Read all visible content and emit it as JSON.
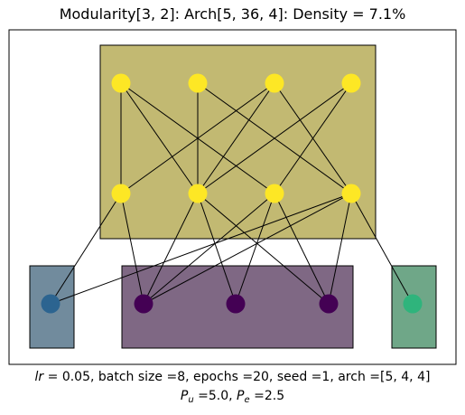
{
  "title": "Modularity[3, 2]: Arch[5, 36, 4]: Density = 7.1%",
  "caption": {
    "lr_symbol": "lr",
    "lr_text": "=  0.05, batch size =8, epochs =20, seed =1, arch =[5, 4, 4]",
    "pu_symbol": "P",
    "pu_sub": "u",
    "pu_text": " =5.0, ",
    "pe_symbol": "P",
    "pe_sub": "e",
    "pe_text": " =2.5"
  },
  "colors": {
    "upper_module": "#c2b972",
    "bottom_left_module": "#718b9d",
    "bottom_middle_module": "#7f6884",
    "bottom_right_module": "#6fa788",
    "node_yellow": "#fde725",
    "node_blue": "#2c6490",
    "node_purple": "#440154",
    "node_green": "#2fb47c"
  },
  "nodes": {
    "top_layer": [
      "n1",
      "n2",
      "n3",
      "n4"
    ],
    "middle_layer": [
      "h1",
      "h2",
      "h3",
      "h4"
    ],
    "output_layer": [
      "o1",
      "o2",
      "o3",
      "o4",
      "o5"
    ]
  },
  "edges": [
    [
      "n1",
      "h1"
    ],
    [
      "n1",
      "h2"
    ],
    [
      "n1",
      "h3"
    ],
    [
      "n2",
      "h2"
    ],
    [
      "n2",
      "h4"
    ],
    [
      "n3",
      "h1"
    ],
    [
      "n3",
      "h2"
    ],
    [
      "n3",
      "h4"
    ],
    [
      "n4",
      "h2"
    ],
    [
      "n4",
      "h3"
    ],
    [
      "h1",
      "o1"
    ],
    [
      "h1",
      "o2"
    ],
    [
      "h2",
      "o2"
    ],
    [
      "h2",
      "o3"
    ],
    [
      "h2",
      "o4"
    ],
    [
      "h3",
      "o2"
    ],
    [
      "h3",
      "o3"
    ],
    [
      "h3",
      "o4"
    ],
    [
      "h4",
      "o1"
    ],
    [
      "h4",
      "o2"
    ],
    [
      "h4",
      "o4"
    ],
    [
      "h4",
      "o5"
    ]
  ]
}
